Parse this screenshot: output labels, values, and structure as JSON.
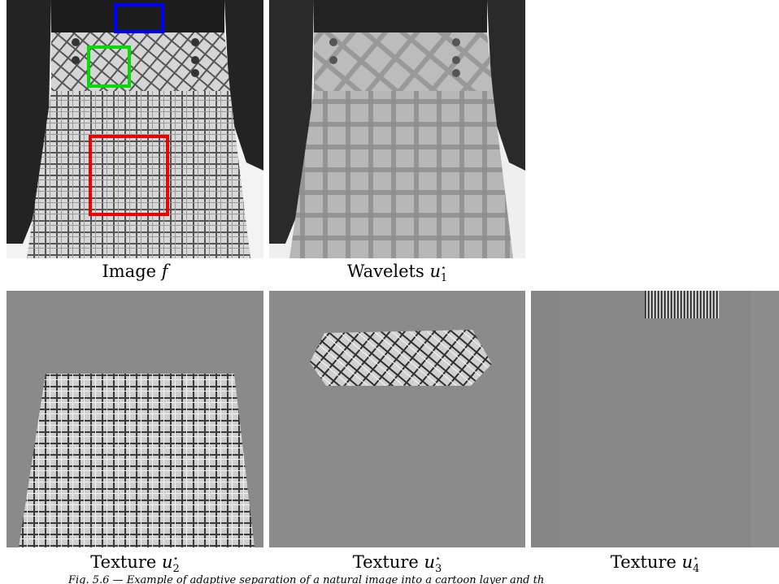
{
  "panels": {
    "image": {
      "caption_text": "Image ",
      "caption_var": "f"
    },
    "wavelets": {
      "caption_text": "Wavelets ",
      "caption_var": "u",
      "sub": "1",
      "sup": "⋆"
    },
    "tex2": {
      "caption_text": "Texture ",
      "caption_var": "u",
      "sub": "2",
      "sup": "⋆"
    },
    "tex3": {
      "caption_text": "Texture ",
      "caption_var": "u",
      "sub": "3",
      "sup": "⋆"
    },
    "tex4": {
      "caption_text": "Texture ",
      "caption_var": "u",
      "sub": "4",
      "sup": "⋆"
    }
  },
  "boxes": {
    "blue": "#0000ff",
    "green": "#00dd00",
    "red": "#ee0000"
  },
  "figure_caption": "Fig. 5.6 — Example of adaptive separation of a natural image into a cartoon layer and th"
}
